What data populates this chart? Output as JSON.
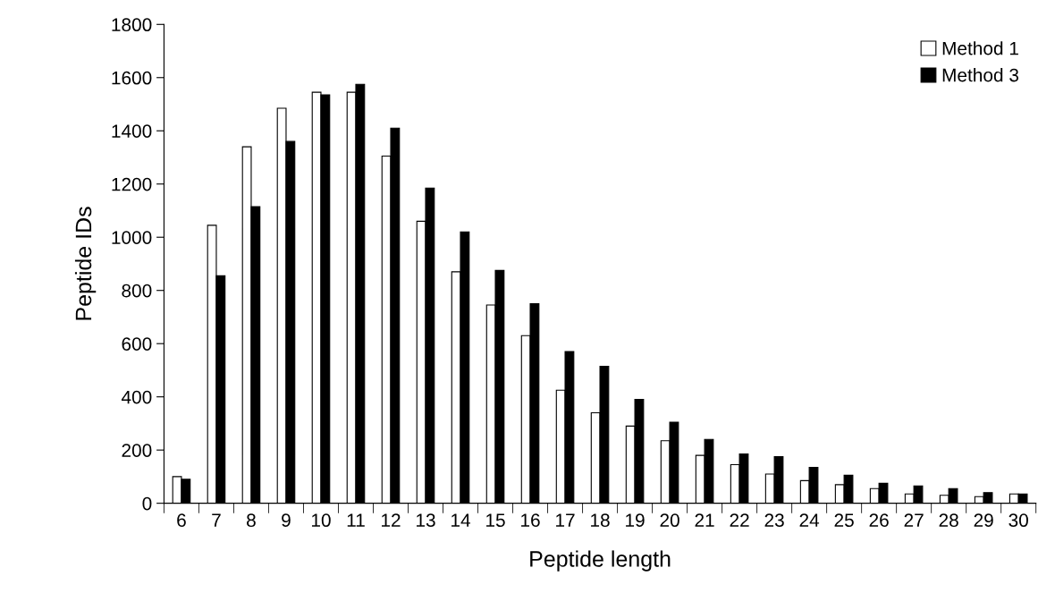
{
  "chart_data": {
    "type": "bar",
    "xlabel": "Peptide length",
    "ylabel": "Peptide IDs",
    "categories": [
      "6",
      "7",
      "8",
      "9",
      "10",
      "11",
      "12",
      "13",
      "14",
      "15",
      "16",
      "17",
      "18",
      "19",
      "20",
      "21",
      "22",
      "23",
      "24",
      "25",
      "26",
      "27",
      "28",
      "29",
      "30"
    ],
    "series": [
      {
        "name": "Method 1",
        "color": "#ffffff",
        "values": [
          100,
          1045,
          1340,
          1485,
          1545,
          1545,
          1305,
          1060,
          870,
          745,
          630,
          425,
          340,
          290,
          235,
          180,
          145,
          110,
          85,
          70,
          55,
          35,
          30,
          25,
          35
        ]
      },
      {
        "name": "Method 3",
        "color": "#000000",
        "values": [
          90,
          855,
          1115,
          1360,
          1535,
          1575,
          1410,
          1185,
          1020,
          875,
          750,
          570,
          515,
          390,
          305,
          240,
          185,
          175,
          135,
          105,
          75,
          65,
          55,
          40,
          35
        ]
      }
    ],
    "ylim": [
      0,
      1800
    ],
    "yticks": [
      0,
      200,
      400,
      600,
      800,
      1000,
      1200,
      1400,
      1600,
      1800
    ],
    "grid": false,
    "legend": "top right"
  }
}
